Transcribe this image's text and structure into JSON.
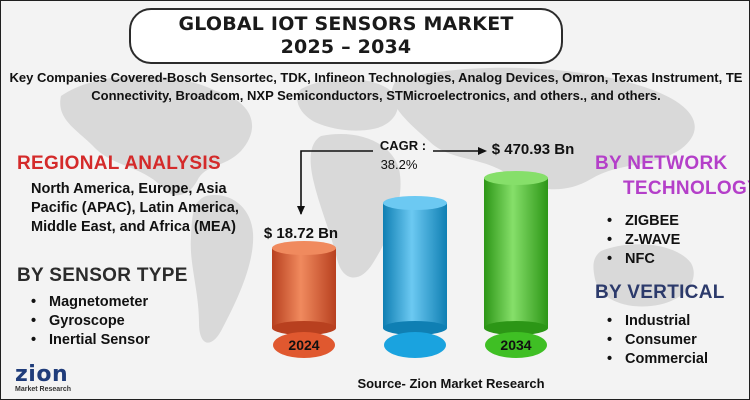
{
  "title": {
    "line1": "GLOBAL IOT SENSORS MARKET",
    "line2": "2025 – 2034"
  },
  "companies": "Key Companies Covered-Bosch Sensortec, TDK, Infineon Technologies, Analog Devices, Omron, Texas Instrument, TE Connectivity, Broadcom, NXP Semiconductors, STMicroelectronics, and others., and others.",
  "regional": {
    "heading": "REGIONAL ANALYSIS",
    "text": "North America, Europe, Asia Pacific (APAC), Latin America, Middle East, and Africa (MEA)"
  },
  "sensor_type": {
    "heading": "BY SENSOR TYPE",
    "items": [
      "Magnetometer",
      "Gyroscope",
      "Inertial Sensor"
    ]
  },
  "network": {
    "heading_line1": "BY NETWORK",
    "heading_line2": "TECHNOLOGY",
    "items": [
      "ZIGBEE",
      "Z-WAVE",
      "NFC"
    ]
  },
  "vertical": {
    "heading": "BY VERTICAL",
    "items": [
      "Industrial",
      "Consumer",
      "Commercial"
    ]
  },
  "cagr": {
    "label": "CAGR :",
    "value": "38.2%"
  },
  "source": "Source- Zion Market Research",
  "logo": {
    "name": "zion",
    "sub": "Market Research"
  },
  "colors": {
    "title_red": "#d42a2a",
    "network_purple": "#b43fc9",
    "vertical_navy": "#2c3a6b",
    "bar_2024": "#e0582f",
    "bar_middle": "#1aa3df",
    "bar_2034": "#3fbf24"
  },
  "chart_data": {
    "type": "bar",
    "categories": [
      "2024",
      "",
      "2034"
    ],
    "values": [
      18.72,
      null,
      470.93
    ],
    "value_labels": [
      "$ 18.72 Bn",
      "",
      "$ 470.93 Bn"
    ],
    "title": "GLOBAL IOT SENSORS MARKET 2025 – 2034",
    "xlabel": "",
    "ylabel": "",
    "annotation": "CAGR : 38.2%",
    "grid": false,
    "legend": "none"
  }
}
